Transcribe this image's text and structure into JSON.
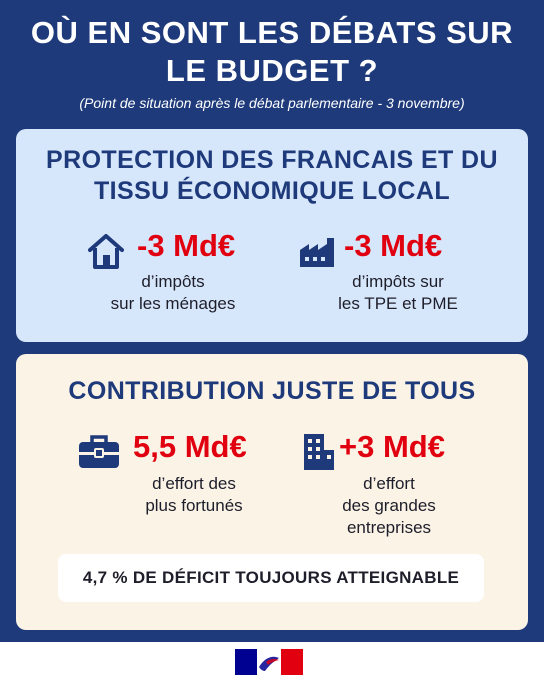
{
  "header": {
    "title_line1": "OÙ EN SONT LES DÉBATS SUR",
    "title_line2": "LE BUDGET ?",
    "subtitle": "(Point de situation après le débat parlementaire - 3 novembre)"
  },
  "protection": {
    "title_line1": "PROTECTION DES FRANCAIS ET DU",
    "title_line2": "TISSU ÉCONOMIQUE LOCAL",
    "items": [
      {
        "icon": "house-icon",
        "value": "-3 Md€",
        "desc_line1": "d’impôts",
        "desc_line2": "sur les ménages"
      },
      {
        "icon": "factory-icon",
        "value": "-3 Md€",
        "desc_line1": "d’impôts sur",
        "desc_line2": "les TPE et PME"
      }
    ]
  },
  "contribution": {
    "title": "CONTRIBUTION JUSTE DE TOUS",
    "items": [
      {
        "icon": "briefcase-icon",
        "value": "5,5 Md€",
        "desc_line1": "d’effort des",
        "desc_line2": "plus fortunés"
      },
      {
        "icon": "building-icon",
        "value": "+3 Md€",
        "desc_line1": "d’effort",
        "desc_line2": "des grandes",
        "desc_line3": "entreprises"
      }
    ],
    "deficit": "4,7 % DE DÉFICIT TOUJOURS ATTEIGNABLE"
  },
  "colors": {
    "navy": "#1e3a7b",
    "red": "#e1000f",
    "light_blue": "#d7e7fb",
    "beige": "#faf3e6"
  },
  "footer": {
    "logo_icon": "marianne-logo-icon"
  }
}
